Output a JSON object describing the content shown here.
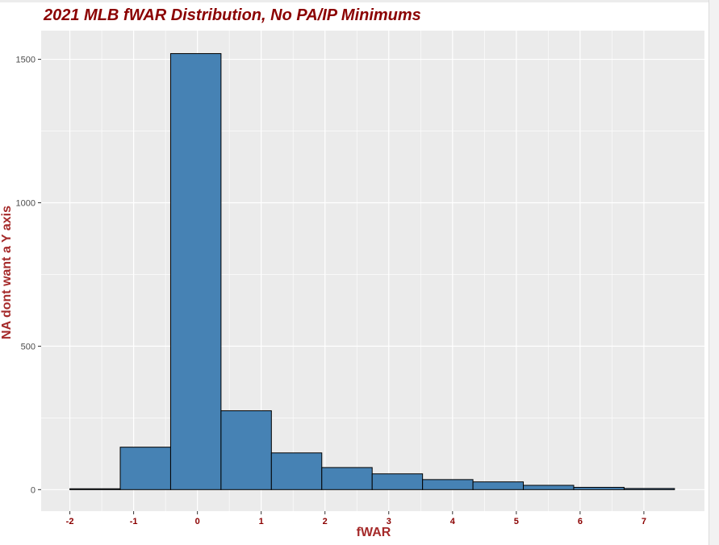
{
  "chart_data": {
    "type": "bar",
    "title": "2021 MLB fWAR Distribution, No PA/IP Minimums",
    "xlabel": "fWAR",
    "ylabel": "NA dont want a Y axis",
    "bins": [
      {
        "x0": -2.0,
        "x1": -1.21,
        "count": 3
      },
      {
        "x0": -1.21,
        "x1": -0.42,
        "count": 148
      },
      {
        "x0": -0.42,
        "x1": 0.37,
        "count": 1520
      },
      {
        "x0": 0.37,
        "x1": 1.16,
        "count": 275
      },
      {
        "x0": 1.16,
        "x1": 1.95,
        "count": 128
      },
      {
        "x0": 1.95,
        "x1": 2.74,
        "count": 77
      },
      {
        "x0": 2.74,
        "x1": 3.53,
        "count": 55
      },
      {
        "x0": 3.53,
        "x1": 4.32,
        "count": 35
      },
      {
        "x0": 4.32,
        "x1": 5.11,
        "count": 27
      },
      {
        "x0": 5.11,
        "x1": 5.9,
        "count": 15
      },
      {
        "x0": 5.9,
        "x1": 6.69,
        "count": 8
      },
      {
        "x0": 6.69,
        "x1": 7.48,
        "count": 4
      }
    ],
    "xticks": [
      "-2",
      "-1",
      "0",
      "1",
      "2",
      "3",
      "4",
      "5",
      "6",
      "7"
    ],
    "yticks": [
      "0",
      "500",
      "1000",
      "1500"
    ],
    "xlim": [
      -2.45,
      7.95
    ],
    "ylim": [
      -75,
      1600
    ],
    "grid": true,
    "legend": "none",
    "colors": {
      "bar_fill": "#4682b4",
      "bar_edge": "#000000",
      "panel": "#ebebeb",
      "grid": "#ffffff",
      "title": "#8b0000",
      "axis_label": "#a52a2a",
      "x_tick_text": "#8b0000",
      "y_tick_text": "#4d4d4d"
    }
  }
}
